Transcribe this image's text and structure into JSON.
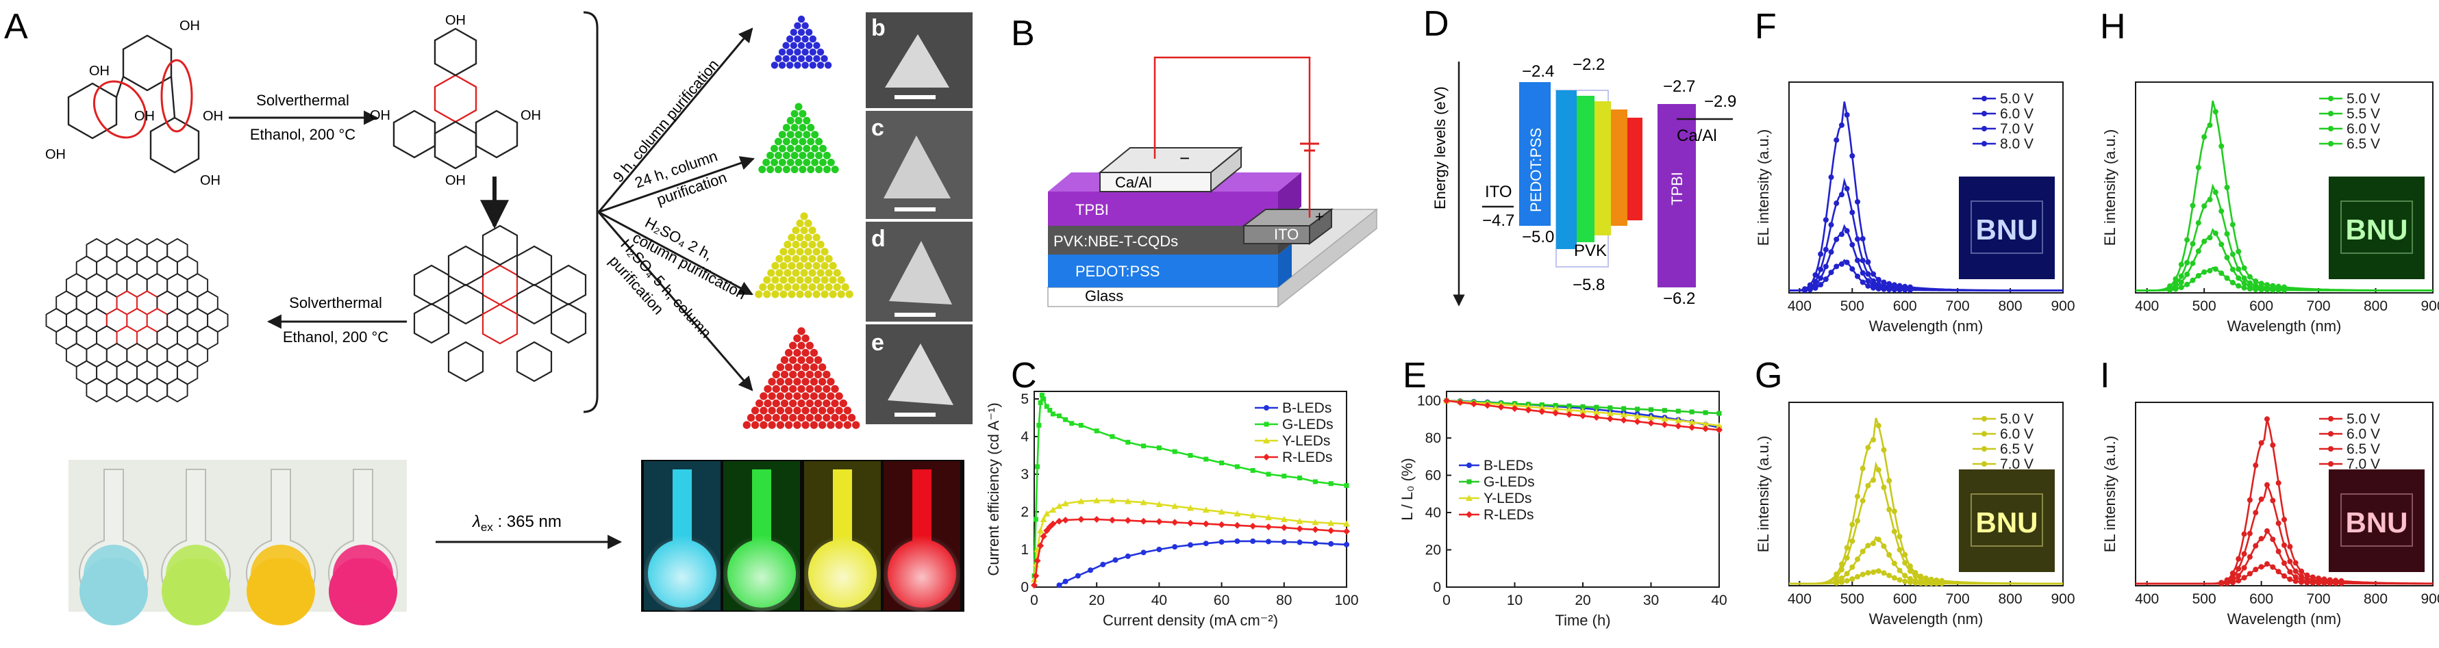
{
  "panel_labels": {
    "A": "A",
    "B": "B",
    "C": "C",
    "D": "D",
    "E": "E",
    "F": "F",
    "G": "G",
    "H": "H",
    "I": "I",
    "b": "b",
    "c": "c",
    "d": "d",
    "e": "e"
  },
  "panelA": {
    "step1": {
      "top": "Solverthermal",
      "bottom": "Ethanol, 200 °C"
    },
    "step2": {
      "top": "Solverthermal",
      "bottom": "Ethanol, 200 °C"
    },
    "routes": [
      {
        "line1": "9 h, column purification",
        "line2": ""
      },
      {
        "line1": "24 h, column",
        "line2": "purification"
      },
      {
        "line1": "H₂SO₄ 2 h,",
        "line2": "column purification"
      },
      {
        "line1": "H₂SO₄ 5 h, column",
        "line2": "purification"
      }
    ],
    "oh": "OH",
    "excitation": {
      "symbol": "λ",
      "sub": "ex",
      "rest": " : 365 nm"
    },
    "triangle_colors": [
      "#2b2bd6",
      "#22cc22",
      "#d8d81a",
      "#dd2222"
    ],
    "flask_daylight_colors": [
      "#8fd6e0",
      "#b8e85a",
      "#f5c21c",
      "#ee2a7b"
    ],
    "flask_uv_colors": [
      "#35d6f0",
      "#33e840",
      "#f2f02a",
      "#f2101e"
    ]
  },
  "panelB": {
    "layers": [
      "Glass",
      "PEDOT:PSS",
      "PVK:NBE-T-CQDs",
      "TPBI",
      "Ca/Al"
    ],
    "ito": "ITO",
    "minus": "−",
    "plus": "+"
  },
  "panelD": {
    "ylabel": "Energy levels (eV)",
    "ito": "ITO",
    "ito_level": "−4.7",
    "pedot": "PEDOT:PSS",
    "pedot_top": "−2.4",
    "pedot_bottom": "−5.0",
    "pvk": "PVK",
    "pvk_top": "−2.2",
    "pvk_bottom": "−5.8",
    "tpbi": "TPBI",
    "tpbi_top": "−2.7",
    "tpbi_bottom": "−6.2",
    "caal": "Ca/Al",
    "caal_level": "−2.9"
  },
  "chart_data": [
    {
      "id": "C",
      "type": "line",
      "title": "",
      "xlabel": "Current density (mA cm⁻²)",
      "ylabel": "Current efficiency (cd A⁻¹)",
      "xlim": [
        0,
        100
      ],
      "ylim": [
        0,
        5.2
      ],
      "xticks": [
        0,
        20,
        40,
        60,
        80,
        100
      ],
      "yticks": [
        0,
        1,
        2,
        3,
        4,
        5
      ],
      "legend_position": "top-right",
      "series": [
        {
          "name": "B-LEDs",
          "color": "#2233dd",
          "x": [
            8,
            10,
            14,
            18,
            22,
            26,
            30,
            35,
            40,
            45,
            50,
            55,
            60,
            65,
            70,
            75,
            80,
            85,
            90,
            95,
            100
          ],
          "y": [
            0.05,
            0.15,
            0.3,
            0.45,
            0.6,
            0.72,
            0.82,
            0.92,
            1.0,
            1.07,
            1.12,
            1.16,
            1.2,
            1.22,
            1.22,
            1.21,
            1.2,
            1.19,
            1.17,
            1.15,
            1.13
          ]
        },
        {
          "name": "G-LEDs",
          "color": "#22dd22",
          "x": [
            0,
            0.5,
            1,
            1.5,
            2,
            2.5,
            3,
            4,
            5,
            6,
            8,
            10,
            12,
            15,
            20,
            25,
            30,
            35,
            40,
            45,
            50,
            55,
            60,
            65,
            70,
            75,
            80,
            85,
            90,
            95,
            100
          ],
          "y": [
            0.3,
            1.8,
            3.2,
            4.3,
            4.9,
            5.1,
            5.0,
            4.8,
            4.7,
            4.6,
            4.55,
            4.45,
            4.35,
            4.3,
            4.15,
            4.0,
            3.85,
            3.75,
            3.7,
            3.6,
            3.5,
            3.4,
            3.3,
            3.2,
            3.1,
            3.0,
            2.95,
            2.9,
            2.8,
            2.75,
            2.7
          ]
        },
        {
          "name": "Y-LEDs",
          "color": "#dddd22",
          "x": [
            0,
            0.5,
            1,
            2,
            3,
            4,
            6,
            8,
            10,
            15,
            20,
            25,
            30,
            35,
            40,
            45,
            50,
            55,
            60,
            65,
            70,
            75,
            80,
            85,
            90,
            95,
            100
          ],
          "y": [
            0.2,
            0.6,
            1.0,
            1.5,
            1.8,
            1.95,
            2.05,
            2.15,
            2.22,
            2.28,
            2.3,
            2.3,
            2.28,
            2.25,
            2.2,
            2.15,
            2.1,
            2.05,
            2.0,
            1.95,
            1.9,
            1.85,
            1.8,
            1.75,
            1.72,
            1.7,
            1.68
          ]
        },
        {
          "name": "R-LEDs",
          "color": "#ee2222",
          "x": [
            0,
            0.5,
            1,
            2,
            3,
            4,
            5,
            6,
            8,
            10,
            15,
            20,
            25,
            30,
            35,
            40,
            45,
            50,
            55,
            60,
            65,
            70,
            75,
            80,
            85,
            90,
            95,
            100
          ],
          "y": [
            0.05,
            0.3,
            0.7,
            1.1,
            1.35,
            1.5,
            1.6,
            1.68,
            1.75,
            1.78,
            1.8,
            1.8,
            1.78,
            1.77,
            1.75,
            1.74,
            1.72,
            1.7,
            1.68,
            1.66,
            1.64,
            1.62,
            1.6,
            1.58,
            1.55,
            1.53,
            1.5,
            1.48
          ]
        }
      ]
    },
    {
      "id": "E",
      "type": "line",
      "title": "",
      "xlabel": "Time (h)",
      "ylabel": "L / L₀ (%)",
      "xlim": [
        0,
        40
      ],
      "ylim": [
        0,
        105
      ],
      "xticks": [
        0,
        10,
        20,
        30,
        40
      ],
      "yticks": [
        0,
        20,
        40,
        60,
        80,
        100
      ],
      "legend_position": "center-left",
      "series": [
        {
          "name": "B-LEDs",
          "color": "#2233dd",
          "x": [
            0,
            2,
            4,
            6,
            8,
            10,
            12,
            14,
            16,
            18,
            20,
            22,
            24,
            26,
            28,
            30,
            32,
            34,
            36,
            38,
            40
          ],
          "y": [
            100,
            99.8,
            99.5,
            99.2,
            98.8,
            98.4,
            98,
            97.5,
            97,
            96.5,
            96,
            95.3,
            94.6,
            93.8,
            92.9,
            92,
            91,
            89.8,
            88.6,
            87.2,
            85.6
          ]
        },
        {
          "name": "G-LEDs",
          "color": "#22cc22",
          "x": [
            0,
            2,
            4,
            6,
            8,
            10,
            12,
            14,
            16,
            18,
            20,
            22,
            24,
            26,
            28,
            30,
            32,
            34,
            36,
            38,
            40
          ],
          "y": [
            100,
            99.6,
            99.3,
            99,
            98.7,
            98.4,
            98.1,
            97.8,
            97.5,
            97.2,
            96.8,
            96.5,
            96.2,
            95.8,
            95.5,
            95.2,
            94.8,
            94.4,
            94,
            93.6,
            93.2
          ]
        },
        {
          "name": "Y-LEDs",
          "color": "#dddd22",
          "x": [
            0,
            2,
            4,
            6,
            8,
            10,
            12,
            14,
            16,
            18,
            20,
            22,
            24,
            26,
            28,
            30,
            32,
            34,
            36,
            38,
            40
          ],
          "y": [
            100,
            99.5,
            99,
            98.5,
            98,
            97.4,
            96.8,
            96.2,
            95.6,
            95,
            94.4,
            93.8,
            93.2,
            92.5,
            91.8,
            91,
            90.2,
            89.4,
            88.5,
            87.6,
            86.6
          ]
        },
        {
          "name": "R-LEDs",
          "color": "#ee2222",
          "x": [
            0,
            2,
            4,
            6,
            8,
            10,
            12,
            14,
            16,
            18,
            20,
            22,
            24,
            26,
            28,
            30,
            32,
            34,
            36,
            38,
            40
          ],
          "y": [
            100,
            99.1,
            98.3,
            97.5,
            96.6,
            95.8,
            95,
            94.2,
            93.4,
            92.6,
            91.9,
            91.1,
            90.3,
            89.6,
            88.8,
            88,
            87.2,
            86.4,
            85.7,
            85,
            84.3
          ]
        }
      ]
    },
    {
      "id": "F",
      "type": "line",
      "title": "",
      "xlabel": "Wavelength (nm)",
      "ylabel": "EL intensity (a.u.)",
      "xlim": [
        380,
        900
      ],
      "ylim": [
        0,
        1.08
      ],
      "xticks": [
        400,
        500,
        600,
        700,
        800,
        900
      ],
      "color": "#2222cc",
      "peak": 480,
      "width": 23,
      "inset_text": "BNU",
      "inset_colors": {
        "bg": "#0a0f60",
        "text": "#c8d8ff"
      },
      "legend_position": "top-right",
      "series": [
        {
          "name": "5.0 V",
          "amp": 1.0
        },
        {
          "name": "6.0 V",
          "amp": 0.58
        },
        {
          "name": "7.0 V",
          "amp": 0.34
        },
        {
          "name": "8.0 V",
          "amp": 0.16
        }
      ]
    },
    {
      "id": "G",
      "type": "line",
      "title": "",
      "xlabel": "Wavelength (nm)",
      "ylabel": "EL intensity (a.u.)",
      "xlim": [
        380,
        900
      ],
      "ylim": [
        0,
        1.08
      ],
      "xticks": [
        400,
        500,
        600,
        700,
        800,
        900
      ],
      "color": "#c8c81a",
      "peak": 540,
      "width": 30,
      "inset_text": "BNU",
      "inset_colors": {
        "bg": "#3a3a10",
        "text": "#ffff9a"
      },
      "legend_position": "top-right",
      "series": [
        {
          "name": "5.0 V",
          "amp": 1.0
        },
        {
          "name": "6.0 V",
          "amp": 0.72
        },
        {
          "name": "6.5 V",
          "amp": 0.28
        },
        {
          "name": "7.0 V",
          "amp": 0.08
        }
      ]
    },
    {
      "id": "H",
      "type": "line",
      "title": "",
      "xlabel": "Wavelength (nm)",
      "ylabel": "EL intensity (a.u.)",
      "xlim": [
        380,
        900
      ],
      "ylim": [
        0,
        1.08
      ],
      "xticks": [
        400,
        500,
        600,
        700,
        800,
        900
      ],
      "color": "#22cc22",
      "peak": 510,
      "width": 26,
      "inset_text": "BNU",
      "inset_colors": {
        "bg": "#0b3a0b",
        "text": "#b8ffb0"
      },
      "legend_position": "top-right",
      "series": [
        {
          "name": "5.0 V",
          "amp": 1.0
        },
        {
          "name": "5.5 V",
          "amp": 0.55
        },
        {
          "name": "6.0 V",
          "amp": 0.32
        },
        {
          "name": "6.5 V",
          "amp": 0.12
        }
      ]
    },
    {
      "id": "I",
      "type": "line",
      "title": "",
      "xlabel": "Wavelength (nm)",
      "ylabel": "EL intensity (a.u.)",
      "xlim": [
        380,
        900
      ],
      "ylim": [
        0,
        1.08
      ],
      "xticks": [
        400,
        500,
        600,
        700,
        800,
        900
      ],
      "color": "#dd2222",
      "peak": 605,
      "width": 24,
      "inset_text": "BNU",
      "inset_colors": {
        "bg": "#3a0a14",
        "text": "#ffc0cc"
      },
      "legend_position": "top-right",
      "series": [
        {
          "name": "5.0 V",
          "amp": 1.0
        },
        {
          "name": "6.0 V",
          "amp": 0.6
        },
        {
          "name": "6.5 V",
          "amp": 0.32
        },
        {
          "name": "7.0 V",
          "amp": 0.12
        }
      ]
    }
  ]
}
